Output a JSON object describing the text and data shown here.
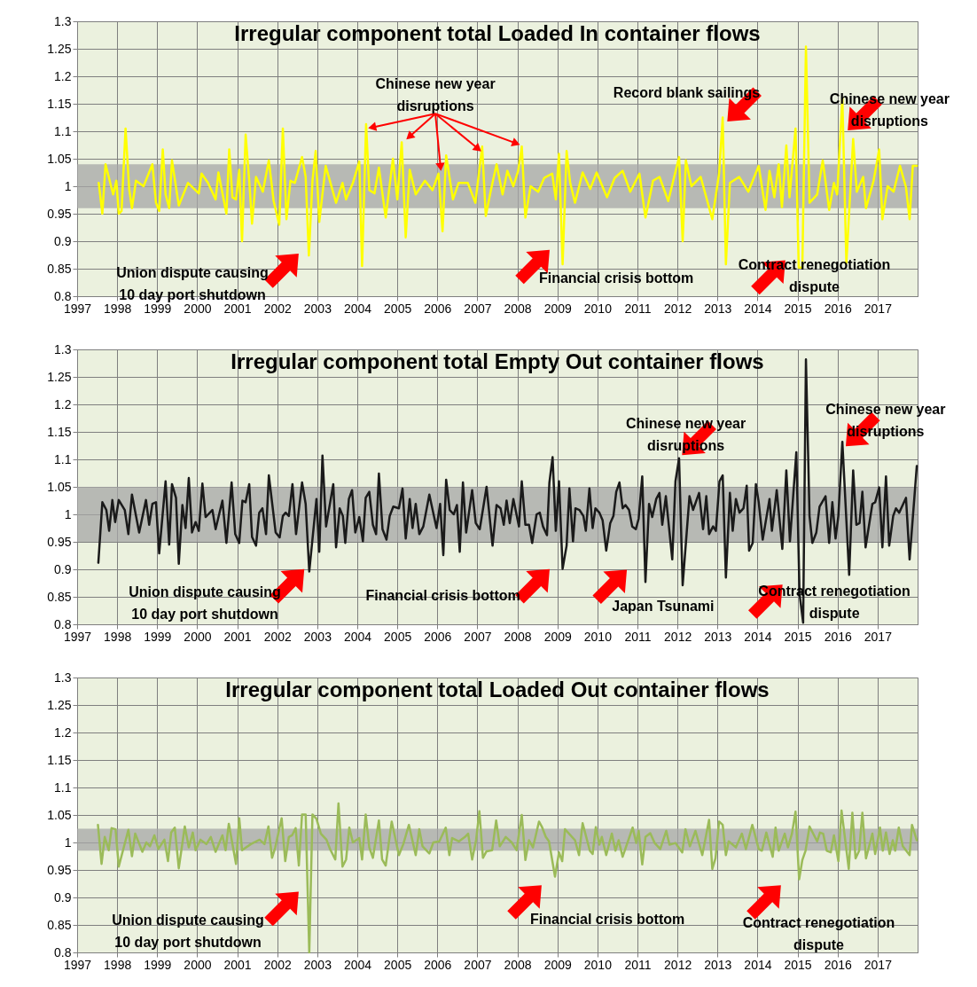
{
  "chart_data": [
    {
      "type": "line",
      "title": "Irregular component total Loaded In container flows",
      "xlim": [
        1997,
        2018
      ],
      "ylim": [
        0.8,
        1.3
      ],
      "xticks": [
        1997,
        1998,
        1999,
        2000,
        2001,
        2002,
        2003,
        2004,
        2005,
        2006,
        2007,
        2008,
        2009,
        2010,
        2011,
        2012,
        2013,
        2014,
        2015,
        2016,
        2017
      ],
      "yticks": [
        0.8,
        0.85,
        0.9,
        0.95,
        1,
        1.05,
        1.1,
        1.15,
        1.2,
        1.25,
        1.3
      ],
      "grid": true,
      "bands": [
        {
          "axis": "y",
          "from": 0.96,
          "to": 1.04,
          "color": "#a6a6a6"
        }
      ],
      "annotations": [
        {
          "text": "Chinese new year\ndisruptions",
          "x": 2004.22,
          "y": 1.113
        },
        "Record blank sailings",
        "Chinese new year\ndisruptions",
        "Union dispute causing\n10 day port shutdown",
        "Financial crisis bottom",
        "Contract renegotiation\ndispute"
      ],
      "x": [
        1997.54,
        1997.63,
        1997.71,
        1997.9,
        1997.98,
        1998.04,
        1998.11,
        1998.21,
        1998.3,
        1998.37,
        1998.47,
        1998.66,
        1998.88,
        1998.97,
        1999.05,
        1999.14,
        1999.21,
        1999.3,
        1999.37,
        1999.54,
        1999.77,
        2000.04,
        2000.11,
        2000.27,
        2000.46,
        2000.53,
        2000.73,
        2000.8,
        2000.88,
        2000.97,
        2001.05,
        2001.12,
        2001.21,
        2001.3,
        2001.37,
        2001.47,
        2001.64,
        2001.79,
        2001.91,
        2002.05,
        2002.14,
        2002.23,
        2002.33,
        2002.44,
        2002.62,
        2002.71,
        2002.79,
        2002.88,
        2002.96,
        2003.05,
        2003.21,
        2003.47,
        2003.63,
        2003.72,
        2003.89,
        2004.05,
        2004.12,
        2004.22,
        2004.3,
        2004.43,
        2004.54,
        2004.71,
        2004.89,
        2005.0,
        2005.11,
        2005.21,
        2005.31,
        2005.46,
        2005.69,
        2005.88,
        2006.03,
        2006.13,
        2006.22,
        2006.39,
        2006.53,
        2006.76,
        2006.95,
        2007.12,
        2007.21,
        2007.33,
        2007.48,
        2007.63,
        2007.75,
        2007.9,
        2008.02,
        2008.11,
        2008.2,
        2008.33,
        2008.52,
        2008.67,
        2008.87,
        2008.96,
        2009.04,
        2009.13,
        2009.23,
        2009.32,
        2009.44,
        2009.63,
        2009.82,
        2009.98,
        2010.24,
        2010.43,
        2010.63,
        2010.82,
        2011.05,
        2011.2,
        2011.39,
        2011.55,
        2011.77,
        2012.04,
        2012.13,
        2012.21,
        2012.35,
        2012.58,
        2012.87,
        2013.04,
        2013.13,
        2013.21,
        2013.31,
        2013.54,
        2013.77,
        2014.03,
        2014.2,
        2014.3,
        2014.42,
        2014.53,
        2014.61,
        2014.72,
        2014.8,
        2014.95,
        2015.03,
        2015.12,
        2015.21,
        2015.3,
        2015.49,
        2015.63,
        2015.79,
        2015.91,
        2015.99,
        2016.12,
        2016.22,
        2016.39,
        2016.48,
        2016.64,
        2016.71,
        2016.9,
        2017.04,
        2017.12,
        2017.25,
        2017.4,
        2017.56,
        2017.71,
        2017.8,
        2017.88,
        2017.98
      ],
      "series": [
        {
          "color": "#ffff00",
          "values": [
            1.006,
            0.95,
            1.04,
            0.985,
            1.01,
            0.95,
            0.955,
            1.105,
            0.995,
            0.96,
            1.01,
            1.0,
            1.04,
            0.97,
            0.955,
            1.067,
            0.985,
            0.96,
            1.047,
            0.965,
            1.006,
            0.987,
            1.023,
            1.006,
            0.976,
            1.025,
            0.95,
            1.067,
            0.98,
            0.976,
            1.03,
            0.9,
            1.094,
            1.01,
            0.932,
            1.017,
            0.99,
            1.047,
            0.973,
            0.93,
            1.105,
            0.94,
            1.01,
            1.006,
            1.053,
            1.017,
            0.874,
            1.01,
            1.064,
            0.935,
            1.037,
            0.97,
            1.006,
            0.976,
            1.006,
            1.045,
            0.855,
            1.113,
            0.993,
            0.987,
            1.034,
            0.943,
            1.05,
            0.976,
            1.08,
            0.907,
            1.03,
            0.985,
            1.01,
            0.993,
            1.023,
            0.918,
            1.056,
            0.976,
            1.006,
            1.006,
            0.97,
            1.072,
            0.946,
            0.99,
            1.04,
            0.985,
            1.028,
            1.0,
            1.028,
            1.072,
            0.943,
            1.0,
            0.99,
            1.015,
            1.023,
            0.976,
            1.059,
            0.858,
            1.064,
            1.006,
            0.97,
            1.025,
            0.995,
            1.025,
            0.98,
            1.015,
            1.028,
            0.99,
            1.023,
            0.943,
            1.01,
            1.017,
            0.973,
            1.053,
            0.9,
            1.047,
            1.0,
            1.017,
            0.94,
            1.023,
            1.125,
            0.858,
            1.006,
            1.017,
            0.99,
            1.037,
            0.957,
            1.028,
            0.98,
            1.04,
            0.962,
            1.074,
            0.98,
            1.105,
            0.852,
            0.852,
            1.254,
            0.97,
            0.985,
            1.047,
            0.957,
            1.006,
            0.985,
            1.16,
            0.86,
            1.086,
            0.99,
            1.017,
            0.96,
            1.01,
            1.067,
            0.94,
            1.0,
            0.99,
            1.037,
            0.998,
            0.94,
            1.037,
            1.037
          ]
        }
      ]
    },
    {
      "type": "line",
      "title": "Irregular component total Empty Out container flows",
      "xlim": [
        1997,
        2018
      ],
      "ylim": [
        0.8,
        1.3
      ],
      "xticks": [
        1997,
        1998,
        1999,
        2000,
        2001,
        2002,
        2003,
        2004,
        2005,
        2006,
        2007,
        2008,
        2009,
        2010,
        2011,
        2012,
        2013,
        2014,
        2015,
        2016,
        2017
      ],
      "yticks": [
        0.8,
        0.85,
        0.9,
        0.95,
        1,
        1.05,
        1.1,
        1.15,
        1.2,
        1.25,
        1.3
      ],
      "grid": true,
      "bands": [
        {
          "axis": "y",
          "from": 0.95,
          "to": 1.05,
          "color": "#a6a6a6"
        }
      ],
      "annotations": [
        "Chinese new year\ndisruptions",
        "Chinese new year\ndisruptions",
        "Union dispute causing\n10 day port shutdown",
        "Financial crisis bottom",
        "Japan Tsunami",
        "Contract renegotiation\ndispute"
      ],
      "x": [
        1997.53,
        1997.63,
        1997.73,
        1997.8,
        1997.88,
        1997.95,
        1998.04,
        1998.19,
        1998.28,
        1998.37,
        1998.55,
        1998.72,
        1998.8,
        1998.88,
        1998.97,
        1999.05,
        1999.21,
        1999.3,
        1999.37,
        1999.47,
        1999.54,
        1999.63,
        1999.71,
        1999.79,
        1999.87,
        1999.96,
        2000.04,
        2000.13,
        2000.21,
        2000.38,
        2000.46,
        2000.63,
        2000.73,
        2000.86,
        2000.95,
        2001.05,
        2001.13,
        2001.21,
        2001.3,
        2001.37,
        2001.47,
        2001.55,
        2001.63,
        2001.72,
        2001.79,
        2001.96,
        2002.06,
        2002.14,
        2002.21,
        2002.29,
        2002.38,
        2002.47,
        2002.62,
        2002.71,
        2002.8,
        2002.98,
        2003.05,
        2003.13,
        2003.22,
        2003.4,
        2003.47,
        2003.56,
        2003.64,
        2003.7,
        2003.79,
        2003.87,
        2003.95,
        2004.05,
        2004.14,
        2004.21,
        2004.3,
        2004.39,
        2004.47,
        2004.54,
        2004.63,
        2004.73,
        2004.81,
        2004.9,
        2005.04,
        2005.13,
        2005.21,
        2005.31,
        2005.38,
        2005.46,
        2005.55,
        2005.65,
        2005.8,
        2005.98,
        2006.07,
        2006.15,
        2006.22,
        2006.31,
        2006.41,
        2006.49,
        2006.56,
        2006.64,
        2006.72,
        2006.87,
        2006.96,
        2007.06,
        2007.23,
        2007.38,
        2007.48,
        2007.58,
        2007.66,
        2007.73,
        2007.81,
        2007.9,
        2008.04,
        2008.11,
        2008.2,
        2008.29,
        2008.37,
        2008.48,
        2008.56,
        2008.64,
        2008.74,
        2008.8,
        2008.88,
        2008.96,
        2009.04,
        2009.13,
        2009.23,
        2009.3,
        2009.39,
        2009.45,
        2009.55,
        2009.65,
        2009.71,
        2009.8,
        2009.88,
        2009.95,
        2010.05,
        2010.13,
        2010.22,
        2010.32,
        2010.4,
        2010.47,
        2010.55,
        2010.63,
        2010.7,
        2010.79,
        2010.87,
        2010.96,
        2011.03,
        2011.12,
        2011.2,
        2011.29,
        2011.37,
        2011.47,
        2011.55,
        2011.62,
        2011.71,
        2011.87,
        2011.95,
        2012.04,
        2012.13,
        2012.3,
        2012.39,
        2012.54,
        2012.64,
        2012.72,
        2012.79,
        2012.89,
        2012.96,
        2013.05,
        2013.13,
        2013.21,
        2013.31,
        2013.38,
        2013.46,
        2013.55,
        2013.65,
        2013.73,
        2013.79,
        2013.88,
        2013.96,
        2014.03,
        2014.13,
        2014.3,
        2014.36,
        2014.48,
        2014.62,
        2014.72,
        2014.81,
        2014.97,
        2015.05,
        2015.14,
        2015.21,
        2015.3,
        2015.37,
        2015.47,
        2015.55,
        2015.7,
        2015.79,
        2015.87,
        2015.95,
        2016.02,
        2016.12,
        2016.29,
        2016.39,
        2016.47,
        2016.55,
        2016.62,
        2016.7,
        2016.87,
        2016.94,
        2017.04,
        2017.12,
        2017.21,
        2017.29,
        2017.39,
        2017.46,
        2017.54,
        2017.71,
        2017.8,
        2017.98
      ],
      "series": [
        {
          "color": "#1a1a1a",
          "values": [
            0.912,
            1.022,
            1.008,
            0.97,
            1.026,
            0.986,
            1.026,
            1.008,
            0.964,
            1.036,
            0.967,
            1.026,
            0.981,
            1.019,
            1.022,
            0.929,
            1.06,
            0.945,
            1.055,
            1.03,
            0.91,
            1.017,
            0.975,
            1.066,
            0.967,
            0.986,
            0.97,
            1.056,
            0.995,
            1.008,
            0.973,
            1.025,
            0.948,
            1.058,
            0.964,
            0.948,
            1.025,
            1.022,
            1.055,
            0.959,
            0.943,
            1.003,
            1.011,
            0.964,
            1.071,
            0.967,
            0.958,
            0.997,
            1.003,
            0.997,
            1.055,
            0.964,
            1.058,
            1.019,
            0.896,
            1.028,
            0.932,
            1.107,
            0.978,
            1.055,
            0.94,
            1.011,
            0.997,
            0.948,
            1.028,
            1.044,
            0.967,
            0.995,
            0.951,
            1.03,
            1.041,
            0.981,
            0.964,
            1.074,
            0.973,
            0.954,
            0.997,
            1.014,
            1.011,
            1.047,
            0.956,
            1.028,
            0.975,
            1.019,
            0.964,
            0.978,
            1.036,
            0.975,
            1.019,
            0.926,
            1.063,
            1.008,
            1.0,
            1.017,
            0.932,
            1.058,
            0.967,
            1.044,
            0.984,
            0.973,
            1.05,
            0.943,
            1.017,
            1.011,
            0.981,
            1.025,
            0.984,
            1.028,
            0.978,
            1.06,
            0.981,
            0.981,
            0.948,
            1.0,
            1.003,
            0.978,
            0.962,
            1.058,
            1.104,
            0.97,
            1.06,
            0.901,
            0.943,
            1.047,
            0.951,
            1.011,
            1.008,
            0.997,
            0.97,
            1.047,
            0.975,
            1.011,
            1.003,
            0.989,
            0.934,
            0.984,
            0.997,
            1.041,
            1.058,
            1.011,
            1.017,
            1.008,
            0.978,
            0.973,
            0.992,
            1.069,
            0.877,
            1.019,
            0.995,
            1.028,
            1.039,
            0.981,
            1.033,
            0.918,
            1.06,
            1.102,
            0.871,
            1.033,
            1.008,
            1.039,
            0.973,
            1.033,
            0.964,
            0.978,
            0.97,
            1.06,
            1.071,
            0.885,
            1.039,
            0.97,
            1.028,
            1.003,
            1.011,
            1.052,
            0.934,
            0.948,
            1.055,
            1.022,
            0.954,
            1.028,
            0.97,
            1.044,
            0.937,
            1.08,
            0.951,
            1.113,
            0.855,
            0.803,
            1.282,
            0.997,
            0.948,
            0.967,
            1.014,
            1.033,
            0.948,
            1.022,
            0.956,
            0.997,
            1.132,
            0.89,
            1.08,
            0.981,
            0.984,
            1.041,
            0.94,
            1.019,
            1.022,
            1.049,
            0.94,
            1.069,
            0.943,
            0.997,
            1.011,
            1.003,
            1.03,
            0.918,
            1.088
          ]
        }
      ]
    },
    {
      "type": "line",
      "title": "Irregular component total Loaded Out container flows",
      "xlim": [
        1997,
        2018
      ],
      "ylim": [
        0.8,
        1.3
      ],
      "xticks": [
        1997,
        1998,
        1999,
        2000,
        2001,
        2002,
        2003,
        2004,
        2005,
        2006,
        2007,
        2008,
        2009,
        2010,
        2011,
        2012,
        2013,
        2014,
        2015,
        2016,
        2017
      ],
      "yticks": [
        0.8,
        0.85,
        0.9,
        0.95,
        1,
        1.05,
        1.1,
        1.15,
        1.2,
        1.25,
        1.3
      ],
      "grid": true,
      "bands": [
        {
          "axis": "y",
          "from": 0.985,
          "to": 1.025,
          "color": "#a6a6a6"
        }
      ],
      "annotations": [
        "Union dispute causing\n10 day port shutdown",
        "Financial crisis bottom",
        "Contract renegotiation\ndispute"
      ],
      "x": [
        1997.52,
        1997.61,
        1997.69,
        1997.79,
        1997.86,
        1997.96,
        1998.04,
        1998.28,
        1998.37,
        1998.45,
        1998.63,
        1998.73,
        1998.82,
        1998.93,
        1999.03,
        1999.18,
        1999.27,
        1999.35,
        1999.44,
        1999.54,
        1999.69,
        1999.79,
        1999.89,
        1999.96,
        2000.08,
        2000.23,
        2000.34,
        2000.46,
        2000.63,
        2000.71,
        2000.79,
        2000.97,
        2001.05,
        2001.12,
        2001.34,
        2001.56,
        2001.68,
        2001.78,
        2001.87,
        2001.95,
        2002.11,
        2002.2,
        2002.29,
        2002.37,
        2002.46,
        2002.54,
        2002.62,
        2002.71,
        2002.8,
        2002.88,
        2002.98,
        2003.09,
        2003.23,
        2003.32,
        2003.45,
        2003.53,
        2003.63,
        2003.72,
        2003.8,
        2003.89,
        2004.05,
        2004.12,
        2004.21,
        2004.3,
        2004.39,
        2004.54,
        2004.62,
        2004.71,
        2004.86,
        2005.04,
        2005.15,
        2005.29,
        2005.46,
        2005.55,
        2005.63,
        2005.8,
        2005.9,
        2006.05,
        2006.21,
        2006.3,
        2006.37,
        2006.54,
        2006.69,
        2006.77,
        2006.87,
        2006.97,
        2007.05,
        2007.14,
        2007.23,
        2007.37,
        2007.47,
        2007.56,
        2007.71,
        2007.86,
        2007.98,
        2008.11,
        2008.2,
        2008.29,
        2008.39,
        2008.54,
        2008.61,
        2008.71,
        2008.79,
        2008.94,
        2009.04,
        2009.12,
        2009.19,
        2009.44,
        2009.54,
        2009.63,
        2009.81,
        2009.88,
        2009.96,
        2010.05,
        2010.11,
        2010.22,
        2010.36,
        2010.45,
        2010.53,
        2010.63,
        2010.88,
        2010.97,
        2011.03,
        2011.12,
        2011.2,
        2011.32,
        2011.43,
        2011.57,
        2011.72,
        2011.8,
        2011.95,
        2012.12,
        2012.2,
        2012.31,
        2012.45,
        2012.62,
        2012.79,
        2012.87,
        2012.95,
        2013.04,
        2013.13,
        2013.21,
        2013.28,
        2013.46,
        2013.61,
        2013.71,
        2013.87,
        2014.03,
        2014.11,
        2014.22,
        2014.38,
        2014.45,
        2014.53,
        2014.68,
        2014.76,
        2014.86,
        2014.95,
        2015.04,
        2015.12,
        2015.2,
        2015.3,
        2015.49,
        2015.56,
        2015.64,
        2015.73,
        2015.83,
        2015.91,
        2016.02,
        2016.1,
        2016.28,
        2016.37,
        2016.45,
        2016.54,
        2016.62,
        2016.71,
        2016.87,
        2016.94,
        2017.06,
        2017.13,
        2017.21,
        2017.3,
        2017.38,
        2017.44,
        2017.53,
        2017.63,
        2017.8,
        2017.86,
        2017.98
      ],
      "series": [
        {
          "color": "#9bbb59",
          "values": [
            1.032,
            0.961,
            1.01,
            0.986,
            1.026,
            1.024,
            0.956,
            1.023,
            0.975,
            1.016,
            0.983,
            1.0,
            0.993,
            1.013,
            0.988,
            1.005,
            0.966,
            1.018,
            1.027,
            0.953,
            1.029,
            0.991,
            1.018,
            0.986,
            1.005,
            0.997,
            1.01,
            0.983,
            1.013,
            0.986,
            1.034,
            0.961,
            1.044,
            0.986,
            0.997,
            1.005,
            0.997,
            1.029,
            0.972,
            0.991,
            1.044,
            0.966,
            1.01,
            1.013,
            1.026,
            0.958,
            1.051,
            1.051,
            0.8,
            1.051,
            1.043,
            1.016,
            1.005,
            0.988,
            0.969,
            1.071,
            0.956,
            0.969,
            1.027,
            1.0,
            1.008,
            0.969,
            1.051,
            0.991,
            0.972,
            1.04,
            0.969,
            0.958,
            1.038,
            0.977,
            0.997,
            1.032,
            0.977,
            1.024,
            0.993,
            0.98,
            1.0,
            1.002,
            1.027,
            0.977,
            1.008,
            1.002,
            1.01,
            1.016,
            0.969,
            1.005,
            1.057,
            0.972,
            0.984,
            0.986,
            1.04,
            0.993,
            1.01,
            1.0,
            0.986,
            1.05,
            0.968,
            1.004,
            0.991,
            1.038,
            1.029,
            1.01,
            1.002,
            0.938,
            0.982,
            0.966,
            1.024,
            1.004,
            0.977,
            1.035,
            0.985,
            0.979,
            1.028,
            0.996,
            1.01,
            0.977,
            1.016,
            0.985,
            1.004,
            0.974,
            1.027,
            0.999,
            1.021,
            0.96,
            1.01,
            1.017,
            0.999,
            0.988,
            1.021,
            0.996,
            0.999,
            0.982,
            1.024,
            0.993,
            1.021,
            0.977,
            1.041,
            0.952,
            0.971,
            1.038,
            1.032,
            0.977,
            1.002,
            0.991,
            1.016,
            0.988,
            1.032,
            0.988,
            0.985,
            1.018,
            0.974,
            1.027,
            0.985,
            1.016,
            0.991,
            1.016,
            1.056,
            0.933,
            0.968,
            0.985,
            1.029,
            1.002,
            1.018,
            1.016,
            0.985,
            0.982,
            1.013,
            0.966,
            1.058,
            0.952,
            1.054,
            0.971,
            0.985,
            1.054,
            0.971,
            1.016,
            0.979,
            1.027,
            0.985,
            1.018,
            0.979,
            1.004,
            0.985,
            1.027,
            0.993,
            0.977,
            1.032,
            1.004
          ]
        }
      ]
    }
  ]
}
